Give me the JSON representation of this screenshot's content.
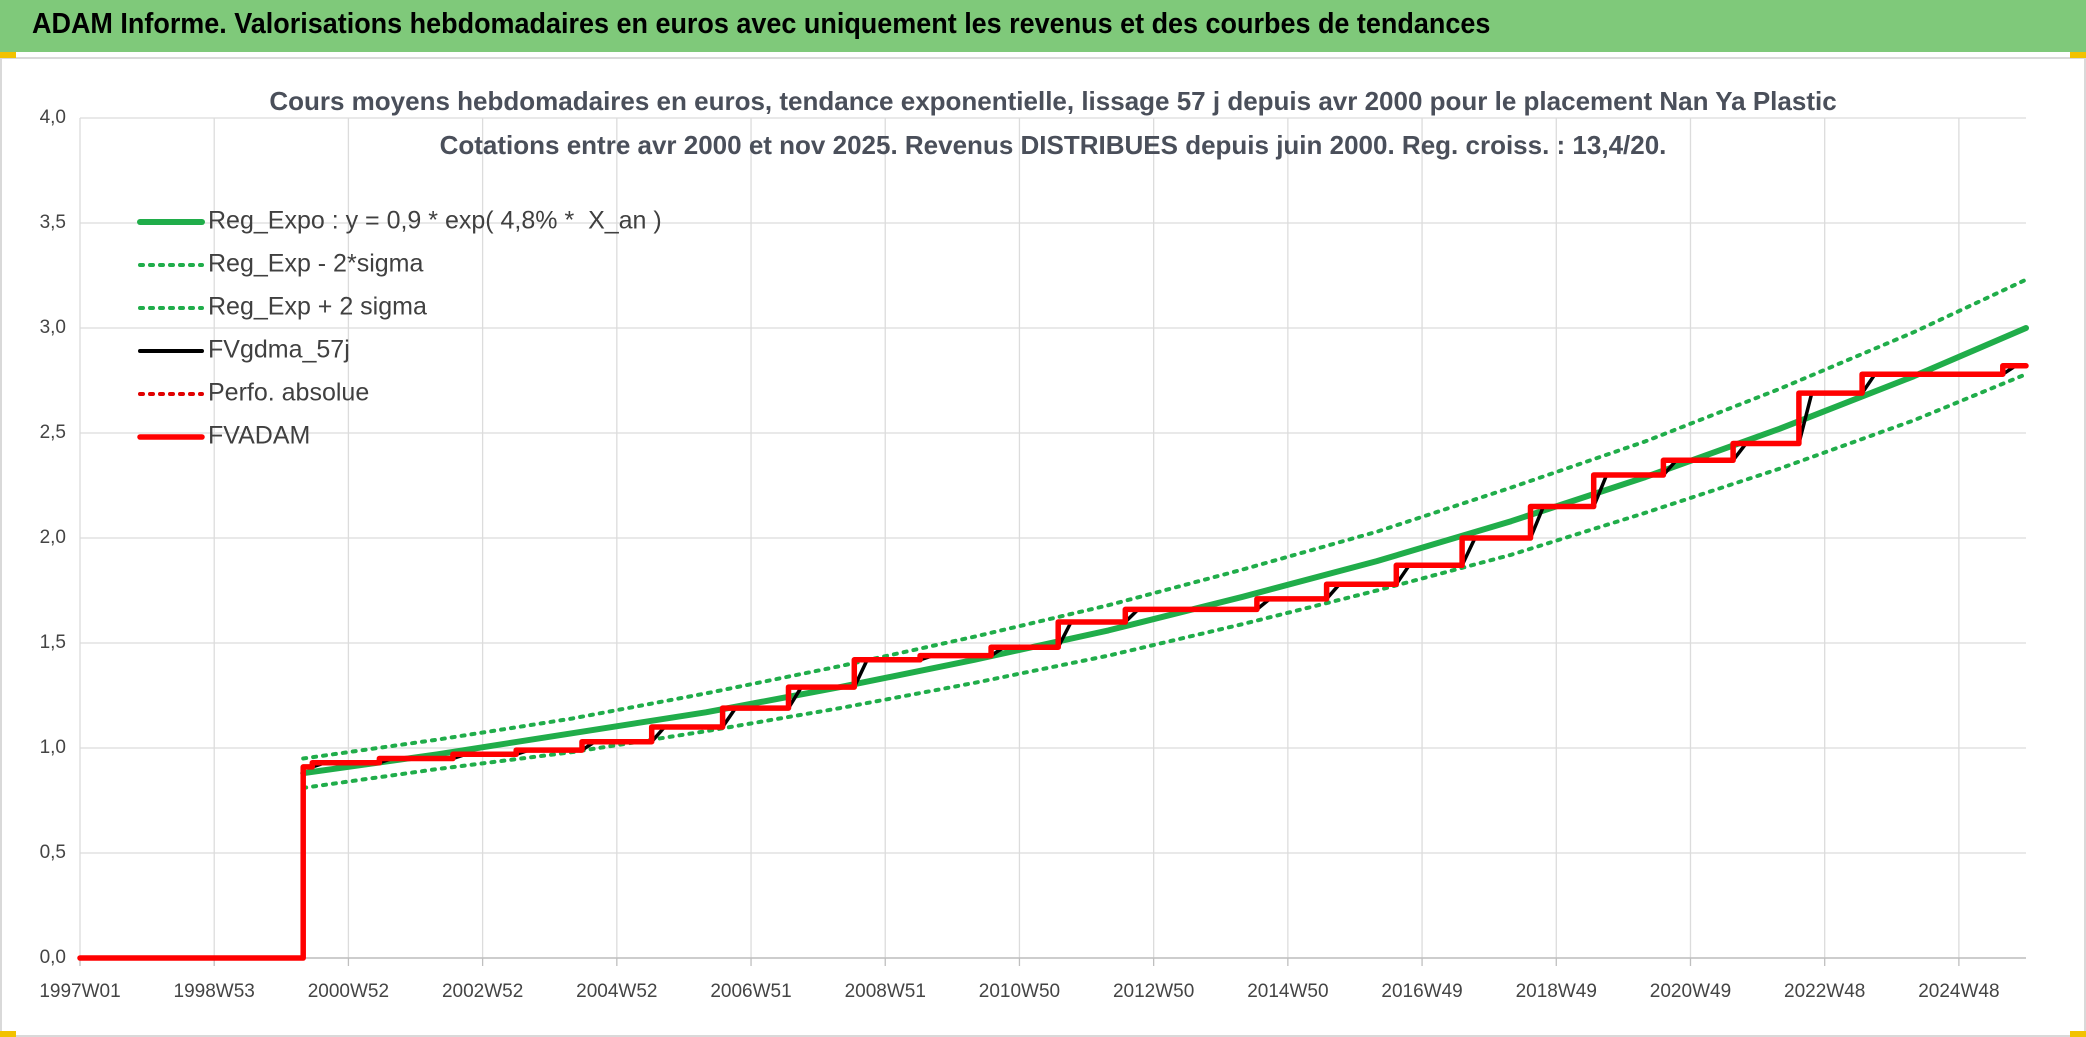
{
  "header": {
    "title": "ADAM Informe. Valorisations hebdomadaires en euros avec uniquement les revenus et des courbes de tendances"
  },
  "chart_data": {
    "type": "line",
    "title": "Cours moyens hebdomadaires en euros, tendance exponentielle, lissage 57 j depuis avr 2000 pour le placement Nan Ya Plastic",
    "subtitle": "Cotations entre avr 2000 et nov 2025. Revenus DISTRIBUES depuis juin 2000. Reg. croiss. : 13,4/20.",
    "xlim": [
      0,
      1508
    ],
    "xticks": [
      {
        "value": 0,
        "label": "1997W01"
      },
      {
        "value": 104,
        "label": "1998W53"
      },
      {
        "value": 208,
        "label": "2000W52"
      },
      {
        "value": 312,
        "label": "2002W52"
      },
      {
        "value": 416,
        "label": "2004W52"
      },
      {
        "value": 520,
        "label": "2006W51"
      },
      {
        "value": 624,
        "label": "2008W51"
      },
      {
        "value": 728,
        "label": "2010W50"
      },
      {
        "value": 832,
        "label": "2012W50"
      },
      {
        "value": 936,
        "label": "2014W50"
      },
      {
        "value": 1040,
        "label": "2016W49"
      },
      {
        "value": 1144,
        "label": "2018W49"
      },
      {
        "value": 1248,
        "label": "2020W49"
      },
      {
        "value": 1352,
        "label": "2022W48"
      },
      {
        "value": 1456,
        "label": "2024W48"
      }
    ],
    "ylim": [
      0,
      4
    ],
    "yticks": [
      {
        "value": 0,
        "label": "0,0"
      },
      {
        "value": 0.5,
        "label": "0,5"
      },
      {
        "value": 1,
        "label": "1,0"
      },
      {
        "value": 1.5,
        "label": "1,5"
      },
      {
        "value": 2,
        "label": "2,0"
      },
      {
        "value": 2.5,
        "label": "2,5"
      },
      {
        "value": 3,
        "label": "3,0"
      },
      {
        "value": 3.5,
        "label": "3,5"
      },
      {
        "value": 4,
        "label": "4,0"
      }
    ],
    "grid": true,
    "legend": "upper left",
    "series": [
      {
        "name": "Reg_Expo : y = 0,9 * exp( 4,8% *  X_an )",
        "color": "#20ad4a",
        "style": "solid",
        "x": [
          173,
          277,
          381,
          485,
          589,
          693,
          797,
          901,
          1005,
          1109,
          1213,
          1317,
          1421,
          1508
        ],
        "values": [
          0.88,
          0.97,
          1.07,
          1.17,
          1.29,
          1.42,
          1.56,
          1.72,
          1.89,
          2.08,
          2.29,
          2.52,
          2.77,
          3.0
        ]
      },
      {
        "name": "Reg_Exp - 2*sigma",
        "color": "#20ad4a",
        "style": "dotted",
        "x": [
          173,
          277,
          381,
          485,
          589,
          693,
          797,
          901,
          1005,
          1109,
          1213,
          1317,
          1421,
          1508
        ],
        "values": [
          0.81,
          0.9,
          0.98,
          1.08,
          1.19,
          1.31,
          1.44,
          1.59,
          1.75,
          1.92,
          2.12,
          2.33,
          2.56,
          2.78
        ]
      },
      {
        "name": "Reg_Exp + 2 sigma",
        "color": "#20ad4a",
        "style": "dotted",
        "x": [
          173,
          277,
          381,
          485,
          589,
          693,
          797,
          901,
          1005,
          1109,
          1213,
          1317,
          1421,
          1508
        ],
        "values": [
          0.95,
          1.04,
          1.14,
          1.26,
          1.39,
          1.53,
          1.68,
          1.85,
          2.03,
          2.24,
          2.46,
          2.71,
          2.98,
          3.23
        ]
      },
      {
        "name": "FVgdma_57j",
        "color": "#000000",
        "style": "solid",
        "x": [
          0,
          173,
          173,
          180,
          190,
          232,
          242,
          289,
          299,
          338,
          348,
          389,
          399,
          443,
          453,
          498,
          508,
          549,
          559,
          600,
          610,
          651,
          661,
          706,
          716,
          758,
          768,
          810,
          820,
          912,
          922,
          966,
          976,
          1020,
          1030,
          1071,
          1081,
          1124,
          1134,
          1173,
          1183,
          1227,
          1237,
          1281,
          1291,
          1332,
          1342,
          1381,
          1391,
          1490,
          1500,
          1508
        ],
        "values": [
          0,
          0,
          0.91,
          0.91,
          0.93,
          0.93,
          0.95,
          0.95,
          0.97,
          0.97,
          0.99,
          0.99,
          1.03,
          1.03,
          1.1,
          1.1,
          1.19,
          1.19,
          1.29,
          1.29,
          1.42,
          1.42,
          1.44,
          1.44,
          1.48,
          1.48,
          1.6,
          1.6,
          1.66,
          1.66,
          1.71,
          1.71,
          1.78,
          1.78,
          1.87,
          1.87,
          2.0,
          2.0,
          2.15,
          2.15,
          2.3,
          2.3,
          2.37,
          2.37,
          2.45,
          2.45,
          2.69,
          2.69,
          2.78,
          2.78,
          2.82,
          2.82
        ]
      },
      {
        "name": "Perfo. absolue",
        "color": "#e00000",
        "style": "dotted",
        "x": [
          0,
          173,
          173,
          180,
          180,
          232,
          232,
          289,
          289,
          338,
          338,
          389,
          389,
          443,
          443,
          498,
          498,
          549,
          549,
          600,
          600,
          651,
          651,
          706,
          706,
          758,
          758,
          810,
          810,
          912,
          912,
          966,
          966,
          1020,
          1020,
          1071,
          1071,
          1124,
          1124,
          1173,
          1173,
          1227,
          1227,
          1281,
          1281,
          1332,
          1332,
          1381,
          1381,
          1490,
          1490,
          1508
        ],
        "values": [
          0,
          0,
          0.91,
          0.91,
          0.93,
          0.93,
          0.95,
          0.95,
          0.97,
          0.97,
          0.99,
          0.99,
          1.03,
          1.03,
          1.1,
          1.1,
          1.19,
          1.19,
          1.29,
          1.29,
          1.42,
          1.42,
          1.44,
          1.44,
          1.48,
          1.48,
          1.6,
          1.6,
          1.66,
          1.66,
          1.71,
          1.71,
          1.78,
          1.78,
          1.87,
          1.87,
          2.0,
          2.0,
          2.15,
          2.15,
          2.3,
          2.3,
          2.37,
          2.37,
          2.45,
          2.45,
          2.69,
          2.69,
          2.78,
          2.78,
          2.82,
          2.82
        ]
      },
      {
        "name": "FVADAM",
        "color": "#ff0000",
        "style": "solid",
        "x": [
          0,
          173,
          173,
          180,
          180,
          232,
          232,
          289,
          289,
          338,
          338,
          389,
          389,
          443,
          443,
          498,
          498,
          549,
          549,
          600,
          600,
          651,
          651,
          706,
          706,
          758,
          758,
          810,
          810,
          912,
          912,
          966,
          966,
          1020,
          1020,
          1071,
          1071,
          1124,
          1124,
          1173,
          1173,
          1227,
          1227,
          1281,
          1281,
          1332,
          1332,
          1381,
          1381,
          1490,
          1490,
          1508
        ],
        "values": [
          0,
          0,
          0.91,
          0.91,
          0.93,
          0.93,
          0.95,
          0.95,
          0.97,
          0.97,
          0.99,
          0.99,
          1.03,
          1.03,
          1.1,
          1.1,
          1.19,
          1.19,
          1.29,
          1.29,
          1.42,
          1.42,
          1.44,
          1.44,
          1.48,
          1.48,
          1.6,
          1.6,
          1.66,
          1.66,
          1.71,
          1.71,
          1.78,
          1.78,
          1.87,
          1.87,
          2.0,
          2.0,
          2.15,
          2.15,
          2.3,
          2.3,
          2.37,
          2.37,
          2.45,
          2.45,
          2.69,
          2.69,
          2.78,
          2.78,
          2.82,
          2.82
        ]
      }
    ]
  }
}
